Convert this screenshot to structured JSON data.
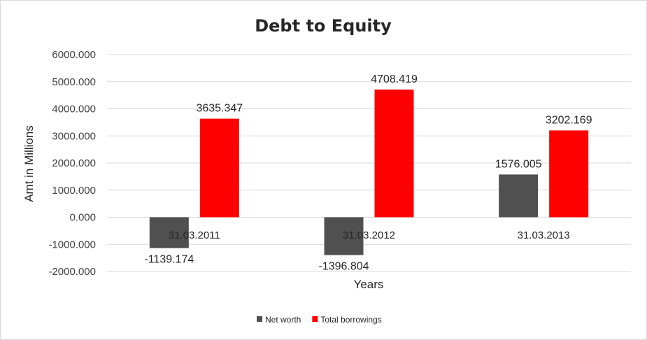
{
  "chart_data": {
    "type": "bar",
    "title": "Debt to Equity",
    "xlabel": "Years",
    "ylabel": "Amt in Millions",
    "categories": [
      "31.03.2011",
      "31.03.2012",
      "31.03.2013"
    ],
    "series": [
      {
        "name": "Net worth",
        "color": "#505050",
        "values": [
          -1139.174,
          -1396.804,
          1576.005
        ],
        "labels": [
          "-1139.174",
          "-1396.804",
          "1576.005"
        ]
      },
      {
        "name": "Total borrowings",
        "color": "#ff0000",
        "values": [
          3635.347,
          4708.419,
          3202.169
        ],
        "labels": [
          "3635.347",
          "4708.419",
          "3202.169"
        ]
      }
    ],
    "ylim": [
      -2000,
      6000
    ],
    "yticks": [
      6000,
      5000,
      4000,
      3000,
      2000,
      1000,
      0,
      -1000,
      -2000
    ],
    "ytick_labels": [
      "6000.000",
      "5000.000",
      "4000.000",
      "3000.000",
      "2000.000",
      "1000.000",
      "0.000",
      "-1000.000",
      "-2000.000"
    ],
    "grid": true,
    "legend_position": "bottom"
  }
}
